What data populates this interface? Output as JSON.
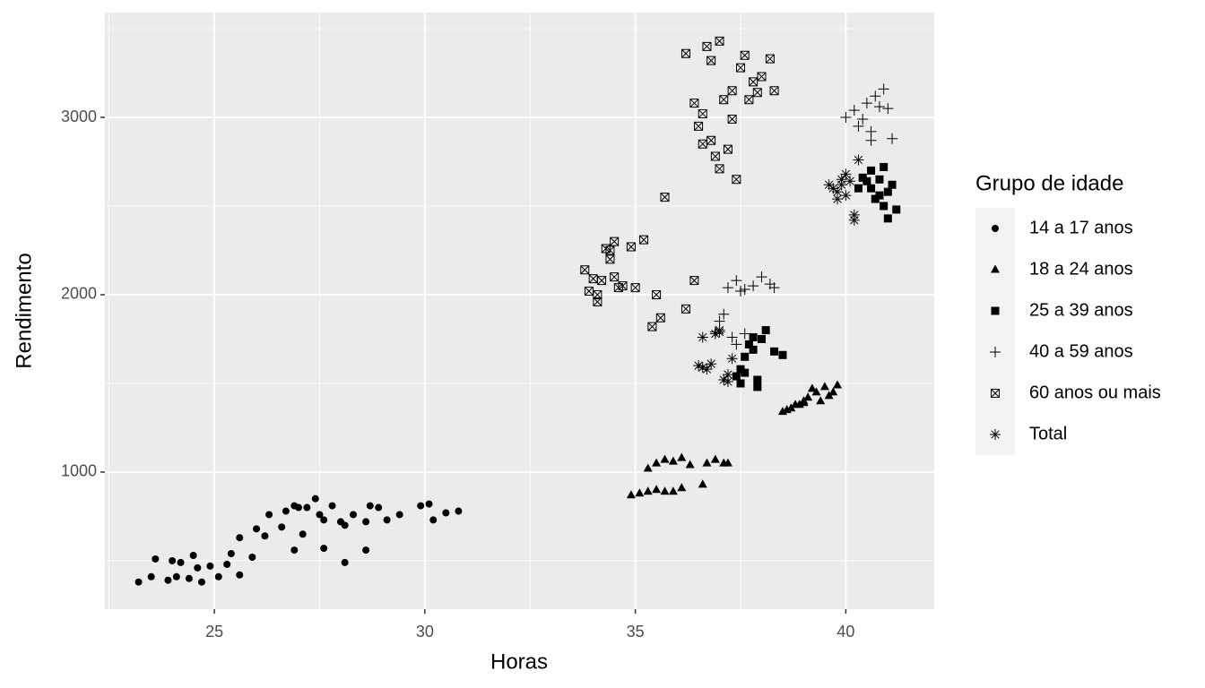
{
  "chart_data": {
    "type": "scatter",
    "x_label": "Horas",
    "y_label": "Rendimento",
    "legend_title": "Grupo de idade",
    "legend": "right",
    "xlim": [
      22.4,
      42.1
    ],
    "ylim": [
      227,
      3591
    ],
    "xticks": [
      25,
      30,
      35,
      40
    ],
    "yticks": [
      1000,
      2000,
      3000
    ],
    "xminor": [
      22.5,
      27.5,
      32.5,
      37.5
    ],
    "yminor": [
      500,
      1500,
      2500,
      3500
    ],
    "grid": true,
    "series": [
      {
        "name": "14 a 17 anos",
        "color": "#000000",
        "shape": "circle",
        "x": [
          23.2,
          23.5,
          23.6,
          23.9,
          24.0,
          24.1,
          24.2,
          24.4,
          24.5,
          24.6,
          24.7,
          24.9,
          25.1,
          25.3,
          25.4,
          25.6,
          25.6,
          25.9,
          26.0,
          26.2,
          26.3,
          26.6,
          26.7,
          26.9,
          27.0,
          27.2,
          27.4,
          27.5,
          27.6,
          27.8,
          28.0,
          28.1,
          28.3,
          28.6,
          28.7,
          28.9,
          29.1,
          29.4,
          29.9,
          30.1,
          30.2,
          30.5,
          30.8,
          27.1,
          26.9,
          28.6,
          28.1,
          27.6
        ],
        "values": [
          380,
          410,
          510,
          390,
          500,
          410,
          490,
          400,
          530,
          460,
          380,
          470,
          410,
          480,
          540,
          630,
          420,
          520,
          680,
          640,
          760,
          690,
          780,
          560,
          800,
          800,
          850,
          760,
          570,
          810,
          720,
          700,
          760,
          560,
          810,
          800,
          730,
          760,
          810,
          820,
          730,
          770,
          780,
          650,
          810,
          720,
          490,
          730
        ]
      },
      {
        "name": "18 a 24 anos",
        "color": "#000000",
        "shape": "triangle",
        "x": [
          34.9,
          35.1,
          35.3,
          35.5,
          35.7,
          35.9,
          36.1,
          35.3,
          35.5,
          35.7,
          35.9,
          36.1,
          36.3,
          36.6,
          36.7,
          36.9,
          37.1,
          37.2,
          38.5,
          38.7,
          38.9,
          39.0,
          39.1,
          39.3,
          39.5,
          39.6,
          39.8,
          38.8,
          39.2,
          39.4,
          39.7,
          38.6,
          39.0
        ],
        "values": [
          870,
          880,
          890,
          900,
          890,
          890,
          910,
          1020,
          1050,
          1070,
          1060,
          1080,
          1040,
          930,
          1050,
          1070,
          1050,
          1050,
          1340,
          1360,
          1380,
          1400,
          1420,
          1450,
          1480,
          1430,
          1490,
          1380,
          1470,
          1400,
          1450,
          1350,
          1390
        ]
      },
      {
        "name": "25 a 39 anos",
        "color": "#000000",
        "shape": "square",
        "x": [
          37.4,
          37.5,
          37.6,
          37.7,
          37.8,
          37.9,
          38.0,
          38.1,
          37.6,
          37.8,
          38.3,
          38.5,
          37.5,
          37.9,
          40.3,
          40.5,
          40.6,
          40.8,
          40.9,
          41.0,
          41.1,
          40.7,
          40.4,
          40.9,
          41.2,
          40.6,
          40.8,
          41.0
        ],
        "values": [
          1540,
          1500,
          1650,
          1720,
          1760,
          1480,
          1750,
          1800,
          1560,
          1690,
          1680,
          1660,
          1580,
          1520,
          2600,
          2640,
          2700,
          2560,
          2720,
          2580,
          2620,
          2540,
          2660,
          2500,
          2480,
          2600,
          2650,
          2430
        ]
      },
      {
        "name": "40 a 59 anos",
        "color": "#000000",
        "shape": "plus",
        "x": [
          37.2,
          37.4,
          37.6,
          37.8,
          38.0,
          38.2,
          38.3,
          37.5,
          36.9,
          37.0,
          37.1,
          37.3,
          37.4,
          37.6,
          40.0,
          40.2,
          40.3,
          40.5,
          40.6,
          40.7,
          40.9,
          41.0,
          41.1,
          40.4,
          40.6,
          40.8
        ],
        "values": [
          2040,
          2080,
          2030,
          2050,
          2100,
          2060,
          2040,
          2020,
          1790,
          1850,
          1890,
          1760,
          1720,
          1780,
          3000,
          3040,
          2950,
          3080,
          2870,
          3120,
          3160,
          3050,
          2880,
          2990,
          2920,
          3060
        ]
      },
      {
        "name": "60 anos ou mais",
        "color": "#000000",
        "shape": "boxcross",
        "x": [
          33.8,
          33.9,
          34.0,
          34.1,
          34.2,
          34.4,
          34.5,
          34.6,
          34.4,
          34.5,
          34.3,
          34.9,
          35.0,
          35.2,
          35.4,
          35.5,
          35.6,
          34.7,
          34.1,
          35.7,
          36.2,
          36.4,
          36.2,
          36.4,
          36.5,
          36.6,
          36.7,
          36.8,
          36.9,
          37.0,
          37.1,
          37.2,
          37.3,
          37.4,
          37.5,
          37.6,
          37.7,
          37.8,
          37.9,
          38.0,
          38.2,
          38.3,
          36.8,
          37.0,
          37.3,
          36.6
        ],
        "values": [
          2140,
          2020,
          2090,
          1960,
          2080,
          2250,
          2300,
          2040,
          2200,
          2100,
          2260,
          2270,
          2040,
          2310,
          1820,
          2000,
          1870,
          2050,
          2000,
          2550,
          1920,
          2080,
          3360,
          3080,
          2950,
          3020,
          3400,
          2870,
          2780,
          3430,
          3100,
          2820,
          3150,
          2650,
          3280,
          3350,
          3100,
          3200,
          3140,
          3230,
          3330,
          3150,
          3320,
          2710,
          2990,
          2850
        ]
      },
      {
        "name": "Total",
        "color": "#000000",
        "shape": "asterisk",
        "x": [
          36.5,
          36.6,
          36.7,
          36.8,
          36.9,
          37.0,
          37.1,
          37.2,
          37.3,
          36.6,
          37.0,
          37.2,
          39.6,
          39.7,
          39.8,
          39.9,
          40.0,
          40.1,
          40.2,
          40.3,
          39.8,
          40.0,
          40.2,
          39.9
        ],
        "values": [
          1600,
          1760,
          1580,
          1610,
          1780,
          1800,
          1520,
          1510,
          1640,
          1590,
          1790,
          1550,
          2620,
          2600,
          2580,
          2650,
          2560,
          2640,
          2420,
          2760,
          2540,
          2680,
          2450,
          2620
        ]
      }
    ]
  }
}
